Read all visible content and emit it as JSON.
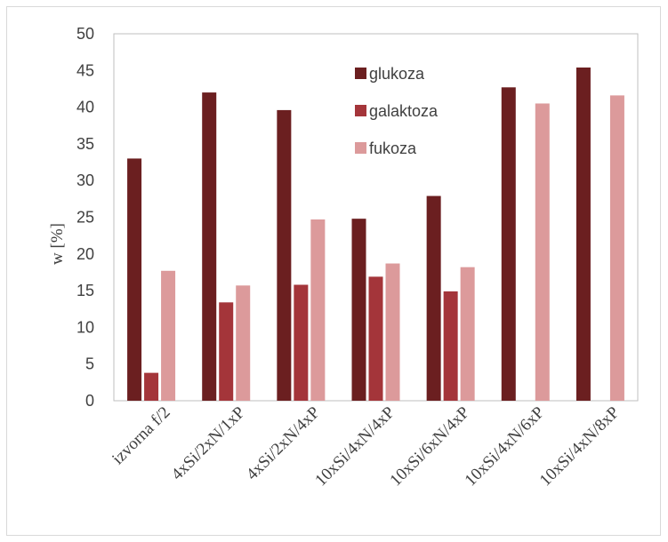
{
  "chart_data": {
    "type": "bar",
    "title": "",
    "xlabel": "",
    "ylabel": "w [%]",
    "ylim": [
      0,
      50
    ],
    "yticks": [
      0,
      5,
      10,
      15,
      20,
      25,
      30,
      35,
      40,
      45,
      50
    ],
    "grid": false,
    "legend_position": "top-right (inside plot)",
    "categories": [
      "izvorna f/2",
      "4xSi/2xN/1xP",
      "4xSi/2xN/4xP",
      "10xSi/4xN/4xP",
      "10xSi/6xN/4xP",
      "10xSi/4xN/6xP",
      "10xSi/4xN/8xP"
    ],
    "series": [
      {
        "name": "glukoza",
        "color": "#6b1f20",
        "values": [
          33.0,
          42.0,
          39.6,
          24.8,
          27.9,
          42.7,
          45.4
        ]
      },
      {
        "name": "galaktoza",
        "color": "#a4353a",
        "values": [
          3.8,
          13.4,
          15.8,
          16.9,
          14.9,
          null,
          null
        ]
      },
      {
        "name": "fukoza",
        "color": "#dc9a9b",
        "values": [
          17.7,
          15.7,
          24.7,
          18.7,
          18.2,
          40.5,
          41.6
        ]
      }
    ]
  }
}
